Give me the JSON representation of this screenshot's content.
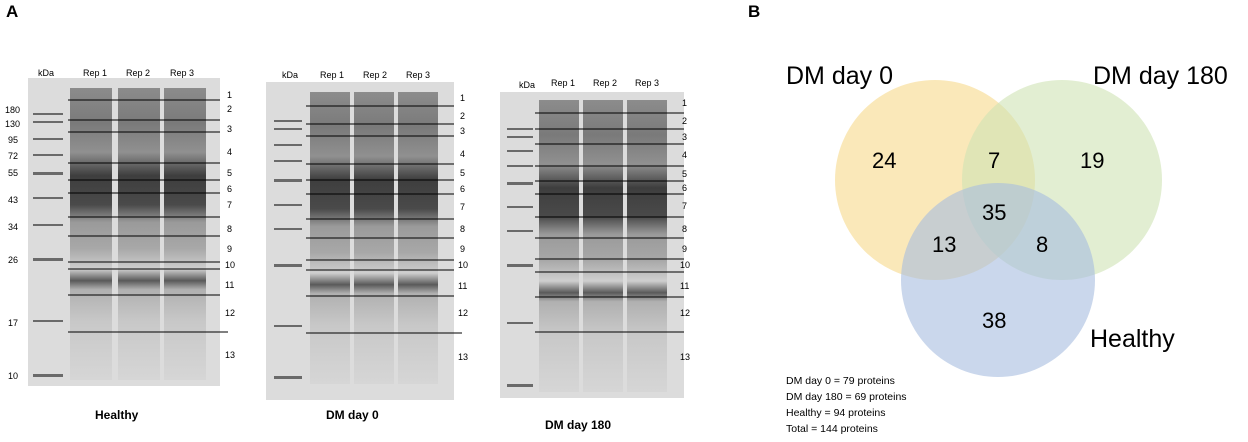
{
  "panels": {
    "a": "A",
    "b": "B"
  },
  "gels": [
    {
      "name": "Healthy",
      "kda_header": "kDa",
      "lanes": [
        "Rep 1",
        "Rep 2",
        "Rep 3"
      ],
      "markers": [
        "180",
        "130",
        "95",
        "72",
        "55",
        "43",
        "34",
        "26",
        "17",
        "10"
      ],
      "bands": [
        "1",
        "2",
        "3",
        "4",
        "5",
        "6",
        "7",
        "8",
        "9",
        "10",
        "11",
        "12",
        "13"
      ]
    },
    {
      "name": "DM day 0",
      "kda_header": "kDa",
      "lanes": [
        "Rep 1",
        "Rep 2",
        "Rep 3"
      ],
      "markers": [],
      "bands": [
        "1",
        "2",
        "3",
        "4",
        "5",
        "6",
        "7",
        "8",
        "9",
        "10",
        "11",
        "12",
        "13"
      ]
    },
    {
      "name": "DM day 180",
      "kda_header": "kDa",
      "lanes": [
        "Rep 1",
        "Rep 2",
        "Rep 3"
      ],
      "markers": [],
      "bands": [
        "1",
        "2",
        "3",
        "4",
        "5",
        "6",
        "7",
        "8",
        "9",
        "10",
        "11",
        "12",
        "13"
      ]
    }
  ],
  "venn": {
    "sets": [
      {
        "name": "DM day 0",
        "color": "#f6d98b"
      },
      {
        "name": "DM day 180",
        "color": "#cfe3b4"
      },
      {
        "name": "Healthy",
        "color": "#a6bde0"
      }
    ],
    "regions": {
      "dm0_only": "24",
      "dm0_dm180": "7",
      "dm180_only": "19",
      "all_three": "35",
      "dm0_healthy": "13",
      "dm180_healthy": "8",
      "healthy_only": "38"
    }
  },
  "summary": [
    "DM day 0 = 79 proteins",
    "DM day 180 = 69 proteins",
    "Healthy = 94 proteins",
    "Total = 144 proteins"
  ]
}
